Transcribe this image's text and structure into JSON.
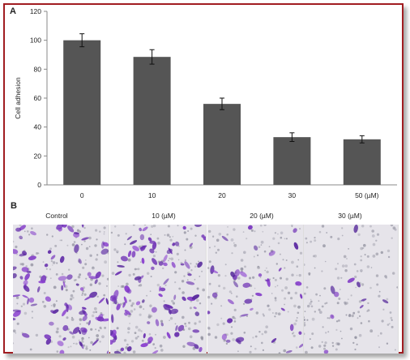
{
  "panels": {
    "a_label": "A",
    "b_label": "B"
  },
  "colors": {
    "frame": "#a11d21",
    "bar": "#555555",
    "axis": "#888888"
  },
  "chart_data": {
    "type": "bar",
    "categories": [
      "0",
      "10",
      "20",
      "30",
      "50 (µM)"
    ],
    "values": [
      100,
      88.5,
      56,
      33,
      31.5
    ],
    "errors": [
      4.5,
      5,
      4,
      3,
      2.5
    ],
    "title": "",
    "xlabel": "",
    "ylabel": "Cell adhesion",
    "ylim": [
      0,
      120
    ],
    "yticks": [
      0,
      20,
      40,
      60,
      80,
      100,
      120
    ],
    "grid": false
  },
  "micrographs": [
    {
      "label": "Control",
      "stain_density": "high"
    },
    {
      "label": "10 (µM)",
      "stain_density": "high"
    },
    {
      "label": "20 (µM)",
      "stain_density": "medium"
    },
    {
      "label": "30 (µM)",
      "stain_density": "low"
    }
  ]
}
